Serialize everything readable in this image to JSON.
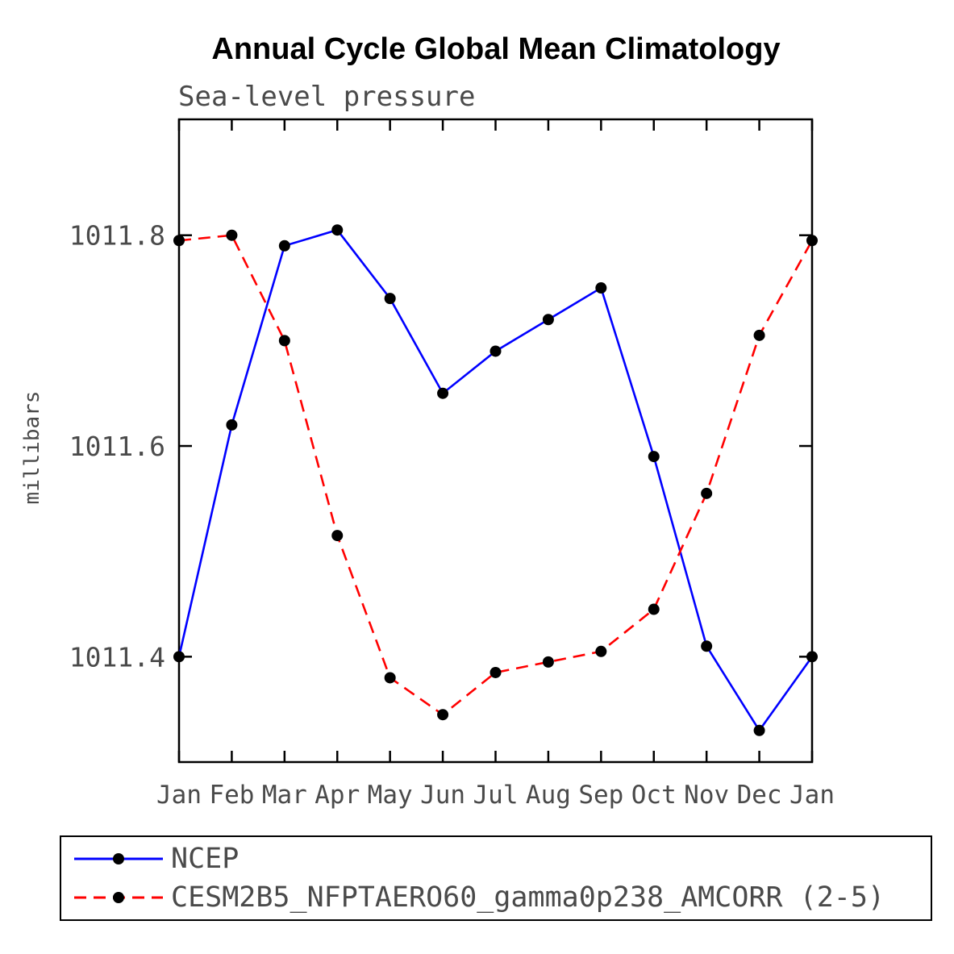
{
  "chart_data": {
    "type": "line",
    "title": "Annual Cycle Global Mean Climatology",
    "subtitle": "Sea-level pressure",
    "ylabel": "millibars",
    "xlabel": "",
    "categories": [
      "Jan",
      "Feb",
      "Mar",
      "Apr",
      "May",
      "Jun",
      "Jul",
      "Aug",
      "Sep",
      "Oct",
      "Nov",
      "Dec",
      "Jan"
    ],
    "ylim": [
      1011.3,
      1011.91
    ],
    "yticks": [
      1011.4,
      1011.6,
      1011.8
    ],
    "grid": false,
    "legend_position": "bottom",
    "marker_color": "#000000",
    "series": [
      {
        "name": "NCEP",
        "color": "#0000ff",
        "dashed": false,
        "values": [
          1011.4,
          1011.62,
          1011.79,
          1011.805,
          1011.74,
          1011.65,
          1011.69,
          1011.72,
          1011.75,
          1011.59,
          1011.41,
          1011.33,
          1011.4
        ]
      },
      {
        "name": "CESM2B5_NFPTAERO60_gamma0p238_AMCORR (2-5)",
        "color": "#ff0000",
        "dashed": true,
        "values": [
          1011.795,
          1011.8,
          1011.7,
          1011.515,
          1011.38,
          1011.345,
          1011.385,
          1011.395,
          1011.405,
          1011.445,
          1011.555,
          1011.705,
          1011.795
        ]
      }
    ]
  }
}
